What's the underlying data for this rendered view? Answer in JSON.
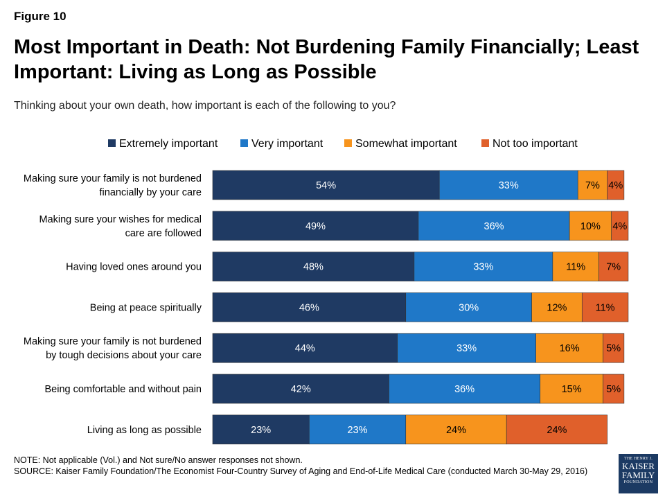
{
  "figure_label": "Figure 10",
  "title": "Most Important in Death: Not Burdening Family Financially; Least Important: Living as Long as Possible",
  "subtitle": "Thinking about your own death, how important is each of the following to you?",
  "note": "NOTE: Not applicable (Vol.) and Not sure/No answer responses not shown.",
  "source": "SOURCE: Kaiser Family Foundation/The Economist Four-Country Survey of Aging and End-of-Life Medical Care (conducted March 30-May 29, 2016)",
  "logo": {
    "line1": "THE HENRY J.",
    "line2": "KAISER",
    "line3": "FAMILY",
    "line4": "FOUNDATION"
  },
  "chart_data": {
    "type": "bar",
    "orientation": "horizontal",
    "stacked": true,
    "legend_position": "top",
    "value_suffix": "%",
    "categories": [
      [
        "Making sure your family is not burdened",
        "financially by your care"
      ],
      [
        "Making sure your wishes for medical",
        "care are followed"
      ],
      [
        "Having loved ones around you"
      ],
      [
        "Being at peace spiritually"
      ],
      [
        "Making sure your family is not burdened",
        "by tough decisions about your care"
      ],
      [
        "Being comfortable and without pain"
      ],
      [
        "Living as long as possible"
      ]
    ],
    "series": [
      {
        "name": "Extremely important",
        "color": "#1f3a63",
        "values": [
          54,
          49,
          48,
          46,
          44,
          42,
          23
        ]
      },
      {
        "name": "Very important",
        "color": "#1f78c8",
        "values": [
          33,
          36,
          33,
          30,
          33,
          36,
          23
        ]
      },
      {
        "name": "Somewhat important",
        "color": "#f7941d",
        "values": [
          7,
          10,
          11,
          12,
          16,
          15,
          24
        ]
      },
      {
        "name": "Not too important",
        "color": "#e0602b",
        "values": [
          4,
          4,
          7,
          11,
          5,
          5,
          24
        ]
      }
    ],
    "xlim": [
      0,
      100
    ]
  }
}
